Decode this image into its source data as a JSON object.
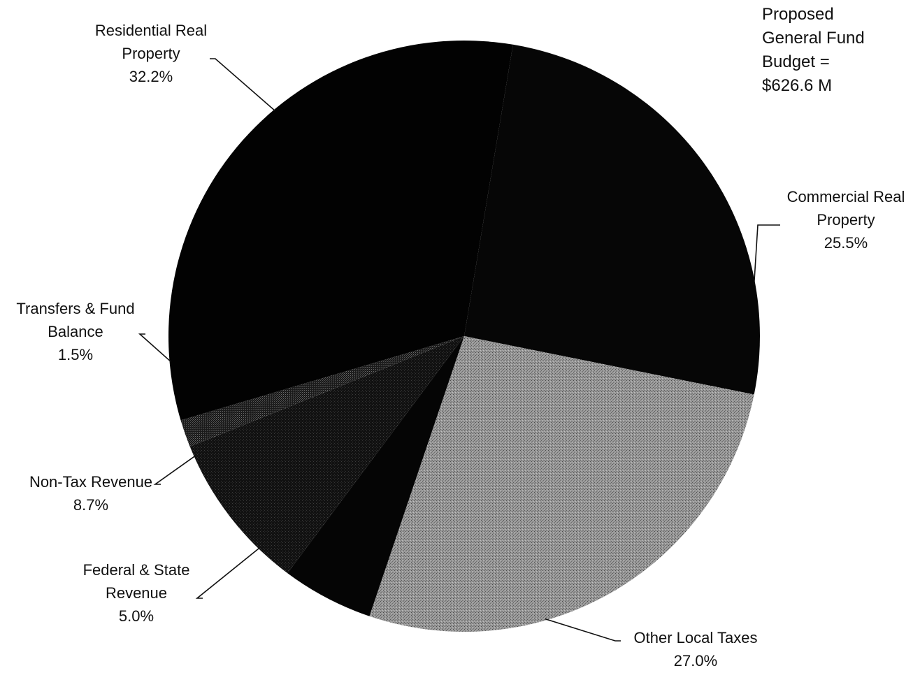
{
  "note": {
    "lines": [
      "Proposed",
      "General Fund",
      "Budget =",
      "$626.6 M"
    ]
  },
  "chart_data": {
    "type": "pie",
    "title": "",
    "slices": [
      {
        "label_lines": [
          "Commercial Real",
          "Property"
        ],
        "value_label": "25.5%",
        "value": 25.5,
        "color": "#060606",
        "pattern": "dark"
      },
      {
        "label_lines": [
          "Other Local Taxes"
        ],
        "value_label": "27.0%",
        "value": 27.0,
        "color": "#8c8c8c",
        "pattern": "gray"
      },
      {
        "label_lines": [
          "Federal & State",
          "Revenue"
        ],
        "value_label": "5.0%",
        "value": 5.0,
        "color": "#050505",
        "pattern": "dark"
      },
      {
        "label_lines": [
          "Non-Tax Revenue"
        ],
        "value_label": "8.7%",
        "value": 8.7,
        "color": "#1e1e1e",
        "pattern": "darkgray"
      },
      {
        "label_lines": [
          "Transfers & Fund",
          "Balance"
        ],
        "value_label": "1.5%",
        "value": 1.5,
        "color": "#3a3a3a",
        "pattern": "midgray"
      },
      {
        "label_lines": [
          "Residential Real",
          "Property"
        ],
        "value_label": "32.2%",
        "value": 32.2,
        "color": "#020202",
        "pattern": "dark"
      }
    ]
  }
}
